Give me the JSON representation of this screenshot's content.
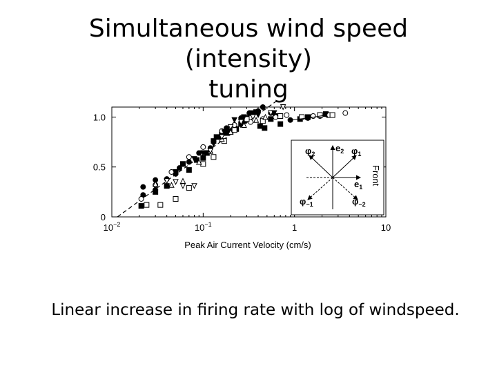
{
  "slide": {
    "title_lines": [
      "Simultaneous wind speed (intensity)",
      "tuning"
    ],
    "caption": "Linear increase in firing rate with log of windspeed."
  },
  "chart_data": {
    "type": "scatter",
    "xlabel": "Peak Air Current Velocity (cm/s)",
    "ylabel": "",
    "x_scale": "log",
    "xlim": [
      0.01,
      10
    ],
    "ylim": [
      0,
      1.1
    ],
    "x_ticks": [
      {
        "value": 0.01,
        "base": "10",
        "exp": "−2"
      },
      {
        "value": 0.1,
        "base": "10",
        "exp": "−1"
      },
      {
        "value": 1,
        "base": "1",
        "exp": ""
      },
      {
        "value": 10,
        "base": "10",
        "exp": ""
      }
    ],
    "y_ticks": [
      {
        "value": 0,
        "label": "0"
      },
      {
        "value": 0.5,
        "label": "0.5"
      },
      {
        "value": 1.0,
        "label": "1.0"
      }
    ],
    "grid": false,
    "fit_line": {
      "style": "dashed",
      "points": [
        [
          0.0115,
          0
        ],
        [
          0.78,
          1.22
        ]
      ]
    },
    "series": [
      {
        "marker": "filled-circle",
        "points": [
          [
            0.022,
            0.22
          ],
          [
            0.022,
            0.3
          ],
          [
            0.03,
            0.27
          ],
          [
            0.03,
            0.37
          ],
          [
            0.04,
            0.38
          ],
          [
            0.05,
            0.43
          ],
          [
            0.055,
            0.49
          ],
          [
            0.07,
            0.55
          ],
          [
            0.09,
            0.64
          ],
          [
            0.12,
            0.69
          ],
          [
            0.15,
            0.8
          ],
          [
            0.18,
            0.89
          ],
          [
            0.22,
            0.92
          ],
          [
            0.26,
            0.99
          ],
          [
            0.32,
            1.04
          ],
          [
            0.4,
            1.06
          ],
          [
            0.45,
            1.1
          ],
          [
            0.55,
            1.04
          ],
          [
            0.9,
            0.97
          ],
          [
            1.4,
            0.99
          ],
          [
            1.9,
            1.01
          ],
          [
            2.3,
            1.02
          ]
        ]
      },
      {
        "marker": "filled-square",
        "points": [
          [
            0.021,
            0.11
          ],
          [
            0.03,
            0.25
          ],
          [
            0.04,
            0.31
          ],
          [
            0.05,
            0.45
          ],
          [
            0.06,
            0.53
          ],
          [
            0.07,
            0.47
          ],
          [
            0.085,
            0.57
          ],
          [
            0.1,
            0.59
          ],
          [
            0.11,
            0.64
          ],
          [
            0.13,
            0.76
          ],
          [
            0.14,
            0.8
          ],
          [
            0.16,
            0.84
          ],
          [
            0.18,
            0.84
          ],
          [
            0.2,
            0.86
          ],
          [
            0.23,
            0.88
          ],
          [
            0.26,
            0.93
          ],
          [
            0.28,
            0.96
          ],
          [
            0.3,
            0.99
          ],
          [
            0.34,
            1.04
          ],
          [
            0.38,
            1.05
          ],
          [
            0.42,
            0.91
          ],
          [
            0.47,
            0.89
          ],
          [
            0.55,
            0.98
          ],
          [
            0.62,
            1.01
          ],
          [
            0.7,
            0.93
          ],
          [
            1.15,
            0.98
          ],
          [
            1.4,
            1.0
          ],
          [
            1.9,
            1.02
          ],
          [
            2.2,
            1.03
          ]
        ]
      },
      {
        "marker": "open-circle",
        "points": [
          [
            0.021,
            0.18
          ],
          [
            0.03,
            0.32
          ],
          [
            0.045,
            0.45
          ],
          [
            0.07,
            0.6
          ],
          [
            0.1,
            0.7
          ],
          [
            0.16,
            0.86
          ],
          [
            0.22,
            0.92
          ],
          [
            0.33,
            0.95
          ],
          [
            0.45,
            0.98
          ],
          [
            0.62,
            1.0
          ],
          [
            0.82,
            1.02
          ],
          [
            1.6,
            1.01
          ],
          [
            2.4,
            1.02
          ],
          [
            3.6,
            1.04
          ]
        ]
      },
      {
        "marker": "open-square",
        "points": [
          [
            0.024,
            0.12
          ],
          [
            0.034,
            0.12
          ],
          [
            0.05,
            0.18
          ],
          [
            0.07,
            0.29
          ],
          [
            0.1,
            0.53
          ],
          [
            0.13,
            0.6
          ],
          [
            0.17,
            0.76
          ],
          [
            0.22,
            0.87
          ],
          [
            0.3,
            0.98
          ],
          [
            0.45,
            0.96
          ],
          [
            0.7,
            1.01
          ],
          [
            1.2,
            1.0
          ],
          [
            1.9,
            1.02
          ],
          [
            2.6,
            1.02
          ]
        ]
      },
      {
        "marker": "open-triangle",
        "points": [
          [
            0.03,
            0.33
          ],
          [
            0.045,
            0.32
          ],
          [
            0.06,
            0.36
          ],
          [
            0.09,
            0.55
          ],
          [
            0.12,
            0.66
          ],
          [
            0.16,
            0.78
          ],
          [
            0.2,
            0.85
          ],
          [
            0.28,
            0.92
          ],
          [
            0.38,
            0.97
          ],
          [
            0.48,
            1.0
          ]
        ]
      },
      {
        "marker": "open-triangle-down",
        "points": [
          [
            0.04,
            0.36
          ],
          [
            0.05,
            0.35
          ],
          [
            0.06,
            0.31
          ],
          [
            0.08,
            0.31
          ],
          [
            0.12,
            0.66
          ],
          [
            0.16,
            0.8
          ],
          [
            0.2,
            0.9
          ],
          [
            0.26,
            0.95
          ],
          [
            0.35,
            1.0
          ],
          [
            0.55,
            1.04
          ],
          [
            0.75,
            1.1
          ]
        ]
      },
      {
        "marker": "filled-triangle-down",
        "points": [
          [
            0.05,
            0.44
          ],
          [
            0.06,
            0.53
          ],
          [
            0.08,
            0.58
          ],
          [
            0.1,
            0.64
          ],
          [
            0.13,
            0.73
          ],
          [
            0.17,
            0.85
          ],
          [
            0.22,
            0.97
          ],
          [
            0.28,
            1.0
          ],
          [
            0.4,
            1.02
          ],
          [
            0.6,
            1.04
          ]
        ]
      }
    ],
    "inset": {
      "labels": {
        "phi2": "φ",
        "phi2_sub": "2",
        "e2": "e",
        "e2_sub": "2",
        "phi1": "φ",
        "phi1_sub": "1",
        "e1": "e",
        "e1_sub": "1",
        "phim1": "φ",
        "phim1_sub": "−1",
        "phim2": "φ",
        "phim2_sub": "−2"
      },
      "front_label": "Front"
    }
  }
}
